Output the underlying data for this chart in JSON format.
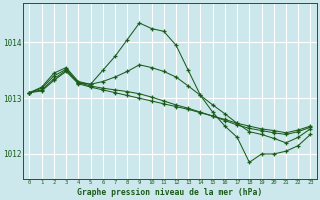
{
  "title": "Graphe pression niveau de la mer (hPa)",
  "bg_color": "#cce8ec",
  "grid_color": "#ffffff",
  "line_color": "#1a5c1a",
  "xlim": [
    -0.5,
    23.5
  ],
  "ylim": [
    1011.55,
    1014.7
  ],
  "yticks": [
    1012,
    1013,
    1014
  ],
  "xticks": [
    0,
    1,
    2,
    3,
    4,
    5,
    6,
    7,
    8,
    9,
    10,
    11,
    12,
    13,
    14,
    15,
    16,
    17,
    18,
    19,
    20,
    21,
    22,
    23
  ],
  "series": [
    {
      "x": [
        0,
        1,
        2,
        3,
        4,
        5,
        6,
        7,
        8,
        9,
        10,
        11,
        12,
        13,
        14,
        15,
        16,
        17,
        18,
        19,
        20,
        21,
        22,
        23
      ],
      "y": [
        1013.1,
        1013.2,
        1013.45,
        1013.55,
        1013.3,
        1013.25,
        1013.5,
        1013.75,
        1014.05,
        1014.35,
        1014.25,
        1014.2,
        1013.95,
        1013.5,
        1013.05,
        1012.75,
        1012.5,
        1012.3,
        1011.85,
        1012.0,
        1012.0,
        1012.05,
        1012.15,
        1012.35
      ]
    },
    {
      "x": [
        0,
        1,
        2,
        3,
        4,
        5,
        6,
        7,
        8,
        9,
        10,
        11,
        12,
        13,
        14,
        15,
        16,
        17,
        18,
        19,
        20,
        21,
        22,
        23
      ],
      "y": [
        1013.1,
        1013.18,
        1013.4,
        1013.52,
        1013.28,
        1013.25,
        1013.3,
        1013.38,
        1013.48,
        1013.6,
        1013.55,
        1013.48,
        1013.38,
        1013.22,
        1013.05,
        1012.88,
        1012.72,
        1012.55,
        1012.4,
        1012.35,
        1012.28,
        1012.2,
        1012.3,
        1012.45
      ]
    },
    {
      "x": [
        0,
        1,
        2,
        3,
        4,
        5,
        6,
        7,
        8,
        9,
        10,
        11,
        12,
        13,
        14,
        15,
        16,
        17,
        18,
        19,
        20,
        21,
        22,
        23
      ],
      "y": [
        1013.1,
        1013.15,
        1013.35,
        1013.5,
        1013.28,
        1013.22,
        1013.18,
        1013.15,
        1013.12,
        1013.08,
        1013.02,
        1012.95,
        1012.88,
        1012.82,
        1012.75,
        1012.68,
        1012.62,
        1012.55,
        1012.5,
        1012.45,
        1012.42,
        1012.38,
        1012.43,
        1012.5
      ]
    },
    {
      "x": [
        0,
        1,
        2,
        3,
        4,
        5,
        6,
        7,
        8,
        9,
        10,
        11,
        12,
        13,
        14,
        15,
        16,
        17,
        18,
        19,
        20,
        21,
        22,
        23
      ],
      "y": [
        1013.1,
        1013.13,
        1013.32,
        1013.48,
        1013.26,
        1013.2,
        1013.15,
        1013.1,
        1013.05,
        1013.0,
        1012.95,
        1012.9,
        1012.85,
        1012.8,
        1012.74,
        1012.68,
        1012.6,
        1012.52,
        1012.46,
        1012.42,
        1012.38,
        1012.35,
        1012.4,
        1012.48
      ]
    }
  ]
}
